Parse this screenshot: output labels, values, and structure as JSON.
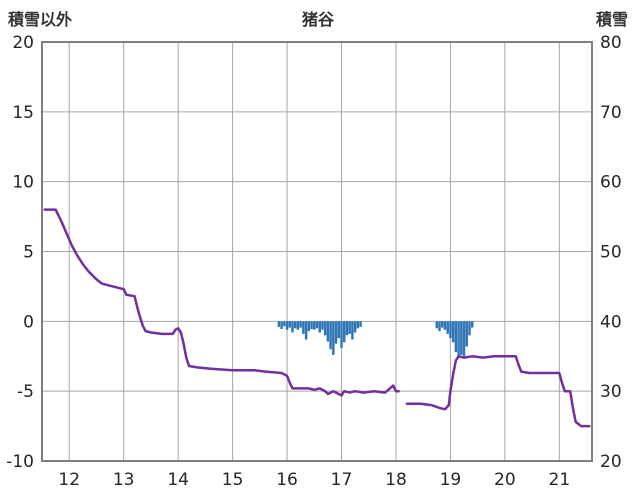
{
  "header": {
    "left_axis_title": "積雪以外",
    "chart_title": "猪谷",
    "right_axis_title": "積雪"
  },
  "chart_data": {
    "type": "line",
    "title": "猪谷",
    "grid": true,
    "x_range": [
      11.5,
      21.6
    ],
    "x_ticks": [
      12,
      13,
      14,
      15,
      16,
      17,
      18,
      19,
      20,
      21
    ],
    "left_axis": {
      "label": "積雪以外",
      "range": [
        -10,
        20
      ],
      "ticks": [
        20,
        15,
        10,
        5,
        0,
        -5,
        -10
      ]
    },
    "right_axis": {
      "label": "積雪",
      "range": [
        20,
        80
      ],
      "ticks": [
        80,
        70,
        60,
        50,
        40,
        30,
        20
      ]
    },
    "series": [
      {
        "name": "temperature-line",
        "type": "line",
        "color": "#7030a0",
        "stroke_width": 2.5,
        "segments": [
          [
            [
              11.55,
              8.0
            ],
            [
              11.75,
              8.0
            ],
            [
              11.85,
              7.2
            ],
            [
              11.95,
              6.3
            ],
            [
              12.05,
              5.4
            ],
            [
              12.15,
              4.7
            ],
            [
              12.25,
              4.1
            ],
            [
              12.35,
              3.6
            ],
            [
              12.45,
              3.2
            ],
            [
              12.5,
              3.0
            ],
            [
              12.6,
              2.7
            ],
            [
              12.8,
              2.5
            ],
            [
              13.0,
              2.3
            ],
            [
              13.05,
              1.9
            ],
            [
              13.2,
              1.8
            ],
            [
              13.25,
              1.0
            ],
            [
              13.3,
              0.3
            ],
            [
              13.35,
              -0.3
            ],
            [
              13.4,
              -0.7
            ],
            [
              13.5,
              -0.8
            ],
            [
              13.7,
              -0.9
            ],
            [
              13.9,
              -0.9
            ],
            [
              13.95,
              -0.6
            ],
            [
              14.0,
              -0.5
            ],
            [
              14.05,
              -0.8
            ],
            [
              14.1,
              -1.6
            ],
            [
              14.15,
              -2.6
            ],
            [
              14.2,
              -3.2
            ],
            [
              14.35,
              -3.3
            ],
            [
              14.6,
              -3.4
            ],
            [
              15.0,
              -3.5
            ],
            [
              15.4,
              -3.5
            ],
            [
              15.6,
              -3.6
            ],
            [
              15.9,
              -3.7
            ],
            [
              16.0,
              -3.9
            ],
            [
              16.05,
              -4.4
            ],
            [
              16.1,
              -4.8
            ],
            [
              16.4,
              -4.8
            ],
            [
              16.5,
              -4.9
            ],
            [
              16.6,
              -4.8
            ],
            [
              16.7,
              -5.0
            ],
            [
              16.75,
              -5.2
            ],
            [
              16.85,
              -5.0
            ],
            [
              16.95,
              -5.2
            ],
            [
              17.0,
              -5.3
            ],
            [
              17.05,
              -5.0
            ],
            [
              17.15,
              -5.1
            ],
            [
              17.25,
              -5.0
            ],
            [
              17.4,
              -5.1
            ],
            [
              17.6,
              -5.0
            ],
            [
              17.8,
              -5.1
            ],
            [
              17.95,
              -4.6
            ],
            [
              18.0,
              -5.0
            ],
            [
              18.05,
              -5.0
            ]
          ],
          [
            [
              18.2,
              -5.9
            ],
            [
              18.45,
              -5.9
            ],
            [
              18.65,
              -6.0
            ],
            [
              18.8,
              -6.2
            ],
            [
              18.9,
              -6.3
            ],
            [
              18.97,
              -6.0
            ],
            [
              19.0,
              -5.0
            ],
            [
              19.05,
              -3.8
            ],
            [
              19.1,
              -2.8
            ],
            [
              19.15,
              -2.5
            ],
            [
              19.25,
              -2.6
            ],
            [
              19.4,
              -2.5
            ],
            [
              19.6,
              -2.6
            ],
            [
              19.8,
              -2.5
            ],
            [
              20.0,
              -2.5
            ],
            [
              20.2,
              -2.5
            ],
            [
              20.25,
              -3.1
            ],
            [
              20.3,
              -3.6
            ],
            [
              20.45,
              -3.7
            ],
            [
              20.8,
              -3.7
            ],
            [
              21.0,
              -3.7
            ],
            [
              21.05,
              -4.4
            ],
            [
              21.1,
              -5.0
            ],
            [
              21.2,
              -5.0
            ],
            [
              21.25,
              -6.2
            ],
            [
              21.3,
              -7.2
            ],
            [
              21.4,
              -7.5
            ],
            [
              21.55,
              -7.5
            ]
          ]
        ]
      },
      {
        "name": "precipitation-bars",
        "type": "bar",
        "color": "#2e75b6",
        "baseline": 0,
        "bar_width_days": 0.045,
        "points": [
          [
            15.85,
            -0.4
          ],
          [
            15.9,
            -0.55
          ],
          [
            15.95,
            -0.35
          ],
          [
            16.0,
            -0.6
          ],
          [
            16.05,
            -0.45
          ],
          [
            16.1,
            -0.8
          ],
          [
            16.15,
            -0.5
          ],
          [
            16.2,
            -0.6
          ],
          [
            16.25,
            -0.45
          ],
          [
            16.3,
            -0.9
          ],
          [
            16.35,
            -1.3
          ],
          [
            16.4,
            -0.7
          ],
          [
            16.45,
            -0.55
          ],
          [
            16.5,
            -0.6
          ],
          [
            16.55,
            -0.5
          ],
          [
            16.6,
            -0.8
          ],
          [
            16.65,
            -0.6
          ],
          [
            16.7,
            -1.0
          ],
          [
            16.75,
            -1.45
          ],
          [
            16.8,
            -2.0
          ],
          [
            16.85,
            -2.4
          ],
          [
            16.9,
            -1.6
          ],
          [
            16.95,
            -1.2
          ],
          [
            17.0,
            -1.9
          ],
          [
            17.05,
            -1.5
          ],
          [
            17.1,
            -1.0
          ],
          [
            17.15,
            -0.9
          ],
          [
            17.2,
            -1.3
          ],
          [
            17.25,
            -0.8
          ],
          [
            17.3,
            -0.5
          ],
          [
            17.35,
            -0.4
          ],
          [
            18.75,
            -0.5
          ],
          [
            18.8,
            -0.7
          ],
          [
            18.85,
            -0.45
          ],
          [
            18.9,
            -0.6
          ],
          [
            18.95,
            -0.9
          ],
          [
            19.0,
            -1.2
          ],
          [
            19.05,
            -1.5
          ],
          [
            19.1,
            -2.2
          ],
          [
            19.15,
            -2.6
          ],
          [
            19.2,
            -2.4
          ],
          [
            19.25,
            -2.5
          ],
          [
            19.3,
            -1.8
          ],
          [
            19.35,
            -1.0
          ],
          [
            19.4,
            -0.45
          ]
        ]
      }
    ],
    "colors": {
      "grid": "#a6a6a6",
      "border": "#7f7f7f",
      "tick_text": "#262626",
      "background": "#ffffff"
    }
  }
}
